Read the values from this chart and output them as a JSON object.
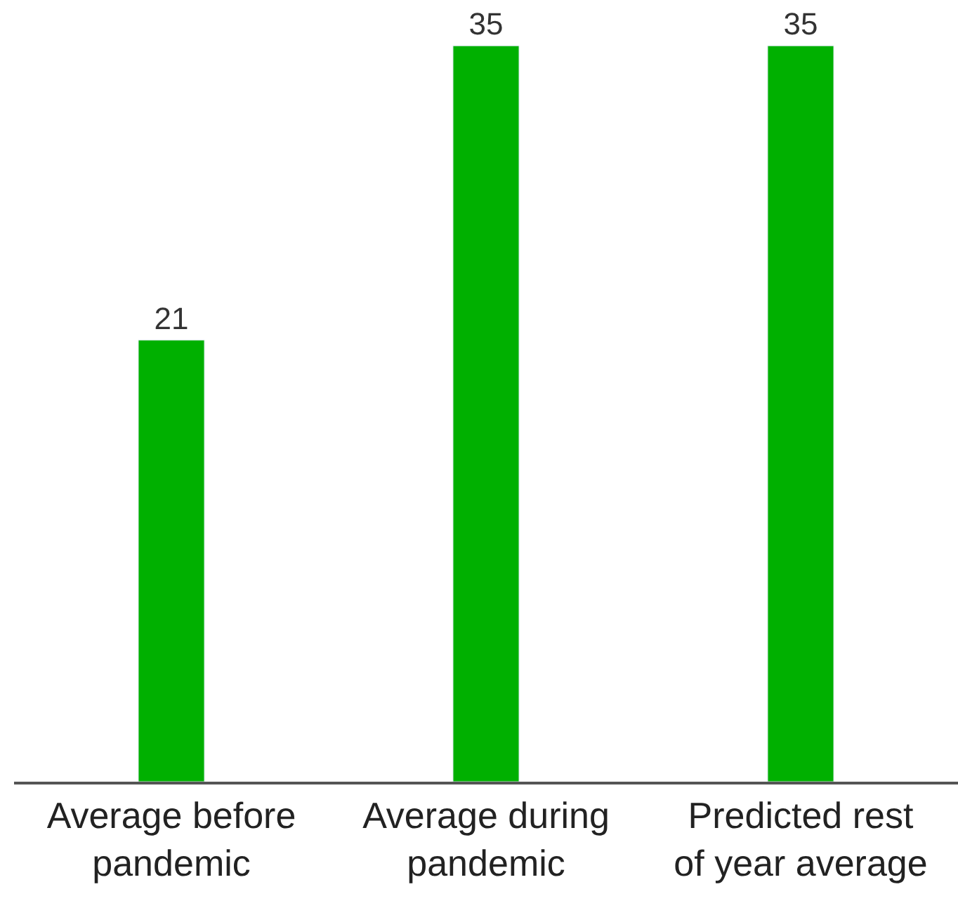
{
  "chart_data": {
    "type": "bar",
    "categories": [
      "Average before pandemic",
      "Average during pandemic",
      "Predicted rest of year average"
    ],
    "values": [
      21,
      35,
      35
    ],
    "color": "#00b000",
    "data_labels": true,
    "legend": false,
    "tick_labels": "x"
  }
}
